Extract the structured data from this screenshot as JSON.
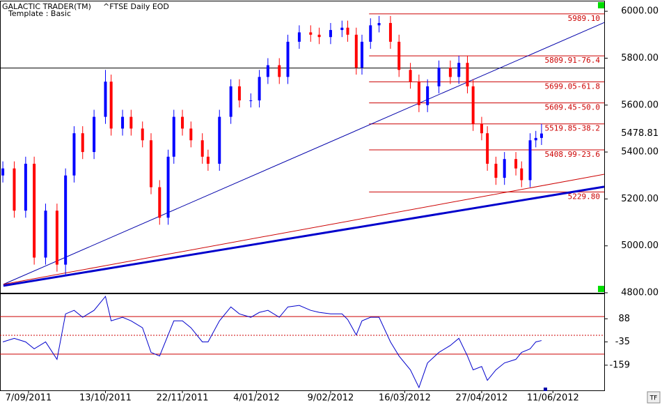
{
  "header": {
    "app": "GALACTIC TRADER(TM)",
    "symbol": "^FTSE Daily EOD",
    "template": "Template : Basic",
    "button": "TF"
  },
  "chart_data": [
    {
      "type": "candlestick",
      "x": [
        1,
        5,
        9,
        12,
        16,
        20,
        23,
        26,
        29,
        33,
        37,
        39,
        43,
        46,
        50,
        53,
        56,
        59,
        61,
        64,
        67,
        71,
        73,
        77,
        81,
        84,
        88,
        91,
        94,
        98,
        101,
        105,
        109,
        112,
        116,
        120,
        122,
        125,
        127,
        130,
        133,
        137,
        140,
        144,
        147,
        150,
        154,
        158,
        161,
        164,
        166,
        169,
        171,
        174,
        177,
        181,
        183,
        186,
        188,
        190
      ],
      "open": [
        5300,
        5330,
        5150,
        5350,
        4950,
        5150,
        4920,
        5300,
        5480,
        5400,
        5550,
        5700,
        5500,
        5550,
        5500,
        5450,
        5250,
        5120,
        5380,
        5550,
        5500,
        5450,
        5380,
        5350,
        5550,
        5680,
        5620,
        5620,
        5720,
        5770,
        5720,
        5870,
        5910,
        5900,
        5890,
        5920,
        5930,
        5900,
        5760,
        5870,
        5940,
        5950,
        5870,
        5750,
        5700,
        5600,
        5680,
        5760,
        5720,
        5780,
        5680,
        5520,
        5480,
        5350,
        5290,
        5370,
        5330,
        5280,
        5450,
        5460
      ],
      "high": [
        5360,
        5360,
        5380,
        5380,
        5180,
        5180,
        5330,
        5510,
        5510,
        5580,
        5750,
        5730,
        5580,
        5580,
        5530,
        5480,
        5280,
        5410,
        5580,
        5580,
        5530,
        5480,
        5410,
        5580,
        5710,
        5710,
        5650,
        5750,
        5800,
        5800,
        5900,
        5940,
        5940,
        5930,
        5950,
        5960,
        5960,
        5930,
        5900,
        5970,
        5980,
        5980,
        5900,
        5780,
        5730,
        5710,
        5790,
        5790,
        5810,
        5810,
        5710,
        5550,
        5510,
        5380,
        5400,
        5400,
        5360,
        5480,
        5490,
        5520
      ],
      "low": [
        5270,
        5120,
        5120,
        4920,
        4920,
        4890,
        4870,
        5270,
        5370,
        5370,
        5520,
        5470,
        5470,
        5470,
        5420,
        5220,
        5090,
        5090,
        5350,
        5470,
        5420,
        5350,
        5320,
        5320,
        5520,
        5590,
        5590,
        5590,
        5690,
        5690,
        5690,
        5840,
        5870,
        5860,
        5860,
        5890,
        5870,
        5730,
        5730,
        5840,
        5910,
        5840,
        5720,
        5670,
        5570,
        5570,
        5650,
        5690,
        5690,
        5650,
        5490,
        5450,
        5320,
        5260,
        5260,
        5300,
        5250,
        5250,
        5420,
        5430
      ],
      "close": [
        5330,
        5150,
        5350,
        4950,
        5150,
        4920,
        5300,
        5480,
        5400,
        5550,
        5700,
        5500,
        5550,
        5500,
        5450,
        5250,
        5120,
        5380,
        5550,
        5500,
        5450,
        5380,
        5350,
        5550,
        5680,
        5620,
        5620,
        5720,
        5770,
        5720,
        5870,
        5910,
        5900,
        5890,
        5920,
        5930,
        5900,
        5760,
        5870,
        5940,
        5950,
        5870,
        5750,
        5700,
        5600,
        5680,
        5760,
        5720,
        5780,
        5680,
        5520,
        5480,
        5350,
        5290,
        5370,
        5330,
        5280,
        5450,
        5460,
        5478.81
      ],
      "up_color": "#0000ff",
      "down_color": "#ff0000",
      "xlim": [
        0,
        212
      ],
      "ylim": [
        4800,
        6048
      ],
      "yticks": [
        {
          "value": 4800,
          "label": "4800.00"
        },
        {
          "value": 5000,
          "label": "5000.00"
        },
        {
          "value": 5200,
          "label": "5200.00"
        },
        {
          "value": 5400,
          "label": "5400.00"
        },
        {
          "value": 5600,
          "label": "5600.00"
        },
        {
          "value": 5800,
          "label": "5800.00"
        },
        {
          "value": 6000,
          "label": "6000.00"
        }
      ],
      "last": 5478.81,
      "hline": 5758,
      "trendlines": [
        {
          "x": [
            1.2,
            212
          ],
          "y": [
            4836,
            5952
          ],
          "color": "#0000aa",
          "width": 1
        },
        {
          "x": [
            1.2,
            212
          ],
          "y": [
            4836,
            5305
          ],
          "color": "#cc0000",
          "width": 1
        },
        {
          "x": [
            1.2,
            212
          ],
          "y": [
            4830,
            5252
          ],
          "color": "#0000cc",
          "width": 3
        }
      ],
      "fib_start": 129.5,
      "fib_color": "#cc0000",
      "levels": [
        {
          "value": 5989.1,
          "label": "5989.10"
        },
        {
          "value": 5809.91,
          "label": "5809.91-76.4"
        },
        {
          "value": 5699.05,
          "label": "5699.05-61.8"
        },
        {
          "value": 5609.45,
          "label": "5609.45-50.0"
        },
        {
          "value": 5519.85,
          "label": "5519.85-38.2"
        },
        {
          "value": 5408.99,
          "label": "5408.99-23.6"
        },
        {
          "value": 5229.8,
          "label": "5229.80"
        }
      ]
    },
    {
      "type": "line",
      "x": [
        1,
        5,
        9,
        12,
        16,
        20,
        23,
        26,
        29,
        33,
        37,
        39,
        43,
        46,
        50,
        53,
        56,
        59,
        61,
        64,
        67,
        71,
        73,
        77,
        81,
        84,
        88,
        91,
        94,
        98,
        101,
        105,
        109,
        112,
        116,
        120,
        122,
        125,
        127,
        130,
        133,
        137,
        140,
        144,
        147,
        150,
        154,
        158,
        161,
        164,
        166,
        169,
        171,
        174,
        177,
        181,
        183,
        186,
        188,
        190
      ],
      "series": [
        {
          "color": "#0000cc",
          "values": [
            -35,
            -16,
            -35,
            -72,
            -35,
            -128,
            114,
            133,
            96,
            133,
            207,
            77,
            96,
            77,
            40,
            -91,
            -110,
            2,
            77,
            77,
            40,
            -35,
            -35,
            77,
            151,
            114,
            96,
            122,
            133,
            96,
            151,
            159,
            133,
            122,
            114,
            114,
            84,
            2,
            77,
            96,
            96,
            -35,
            -110,
            -184,
            -278,
            -147,
            -91,
            -54,
            -16,
            -110,
            -184,
            -166,
            -240,
            -184,
            -147,
            -128,
            -91,
            -72,
            -35,
            -28
          ]
        }
      ],
      "xlim": [
        0,
        212
      ],
      "ylim": [
        -293,
        219
      ],
      "yticks": [
        88,
        -35,
        -159
      ],
      "levels": [
        100,
        0,
        -100
      ],
      "xticks": [
        {
          "value": 10,
          "label": "7/09/2011"
        },
        {
          "value": 37,
          "label": "13/10/2011"
        },
        {
          "value": 64,
          "label": "22/11/2011"
        },
        {
          "value": 90,
          "label": "4/01/2012"
        },
        {
          "value": 116,
          "label": "9/02/2012"
        },
        {
          "value": 142,
          "label": "16/03/2012"
        },
        {
          "value": 169,
          "label": "27/04/2012"
        },
        {
          "value": 194,
          "label": "11/06/2012"
        }
      ]
    }
  ]
}
